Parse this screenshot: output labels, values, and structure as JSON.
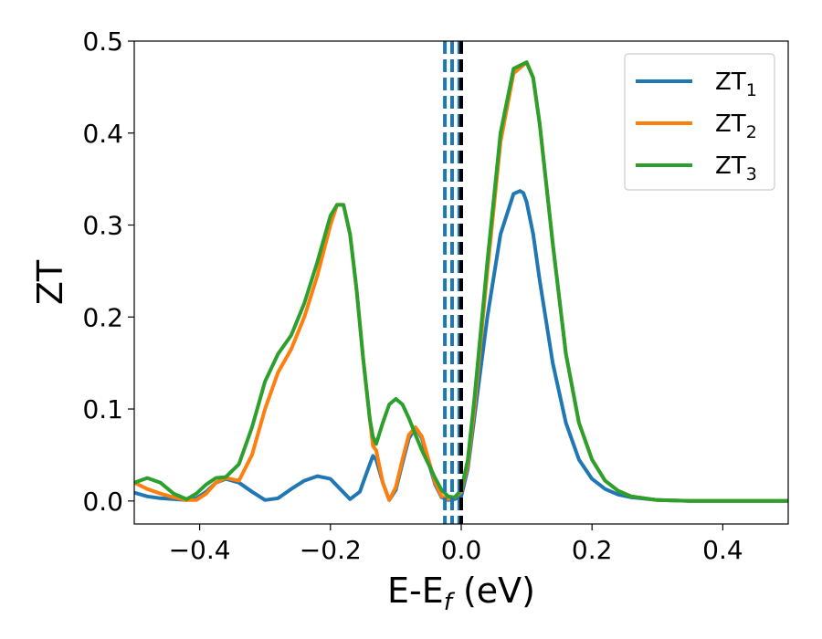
{
  "chart_data": {
    "type": "line",
    "xlabel_main": "E-E",
    "xlabel_sub": "f",
    "xlabel_unit": " (eV)",
    "ylabel": "ZT",
    "xlim": [
      -0.5,
      0.5
    ],
    "ylim": [
      -0.025,
      0.5
    ],
    "xticks": [
      -0.4,
      -0.2,
      0.0,
      0.2,
      0.4
    ],
    "xtick_labels": [
      "−0.4",
      "−0.2",
      "0.0",
      "0.2",
      "0.4"
    ],
    "yticks": [
      0.0,
      0.1,
      0.2,
      0.3,
      0.4,
      0.5
    ],
    "ytick_labels": [
      "0.0",
      "0.1",
      "0.2",
      "0.3",
      "0.4",
      "0.5"
    ],
    "legend_position": "top-right",
    "grid": false,
    "vlines": [
      {
        "x": -0.025,
        "style": "dashed",
        "color": "#1f77b4"
      },
      {
        "x": -0.014,
        "style": "dashed",
        "color": "#1f77b4"
      },
      {
        "x": -0.003,
        "style": "dashed",
        "color": "#1f77b4"
      },
      {
        "x": 0.0,
        "style": "dashed",
        "color": "#000000"
      }
    ],
    "series": [
      {
        "name": "ZT",
        "sub": "1",
        "color": "#1f77b4",
        "x": [
          -0.5,
          -0.48,
          -0.46,
          -0.44,
          -0.42,
          -0.405,
          -0.39,
          -0.375,
          -0.36,
          -0.34,
          -0.32,
          -0.3,
          -0.28,
          -0.26,
          -0.24,
          -0.22,
          -0.2,
          -0.185,
          -0.17,
          -0.155,
          -0.145,
          -0.135,
          -0.13,
          -0.12,
          -0.11,
          -0.1,
          -0.09,
          -0.08,
          -0.07,
          -0.06,
          -0.05,
          -0.04,
          -0.03,
          -0.02,
          -0.01,
          0.0,
          0.01,
          0.02,
          0.04,
          0.06,
          0.08,
          0.09,
          0.095,
          0.1,
          0.11,
          0.12,
          0.14,
          0.16,
          0.18,
          0.2,
          0.22,
          0.24,
          0.26,
          0.3,
          0.35,
          0.4,
          0.45,
          0.5
        ],
        "y": [
          0.009,
          0.005,
          0.003,
          0.002,
          0.001,
          0.003,
          0.01,
          0.02,
          0.024,
          0.02,
          0.01,
          0.001,
          0.003,
          0.013,
          0.022,
          0.027,
          0.024,
          0.013,
          0.002,
          0.01,
          0.03,
          0.049,
          0.045,
          0.02,
          0.001,
          0.012,
          0.041,
          0.068,
          0.08,
          0.068,
          0.042,
          0.018,
          0.004,
          0.001,
          0.002,
          0.005,
          0.035,
          0.09,
          0.2,
          0.29,
          0.334,
          0.337,
          0.335,
          0.325,
          0.29,
          0.24,
          0.15,
          0.085,
          0.045,
          0.024,
          0.013,
          0.007,
          0.004,
          0.001,
          0.0,
          0.0,
          0.0,
          0.0
        ]
      },
      {
        "name": "ZT",
        "sub": "2",
        "color": "#ff7f0e",
        "x": [
          -0.5,
          -0.48,
          -0.46,
          -0.44,
          -0.42,
          -0.405,
          -0.39,
          -0.375,
          -0.36,
          -0.34,
          -0.32,
          -0.3,
          -0.28,
          -0.26,
          -0.24,
          -0.22,
          -0.2,
          -0.19,
          -0.18,
          -0.17,
          -0.16,
          -0.15,
          -0.14,
          -0.135,
          -0.13,
          -0.12,
          -0.11,
          -0.1,
          -0.09,
          -0.08,
          -0.07,
          -0.06,
          -0.05,
          -0.04,
          -0.03,
          -0.02,
          -0.01,
          0.0,
          0.01,
          0.02,
          0.04,
          0.06,
          0.08,
          0.1,
          0.11,
          0.12,
          0.14,
          0.16,
          0.18,
          0.2,
          0.22,
          0.24,
          0.26,
          0.3,
          0.35,
          0.4,
          0.45,
          0.5
        ],
        "y": [
          0.02,
          0.013,
          0.008,
          0.004,
          0.001,
          0.001,
          0.008,
          0.02,
          0.025,
          0.022,
          0.05,
          0.1,
          0.14,
          0.165,
          0.2,
          0.245,
          0.3,
          0.322,
          0.322,
          0.29,
          0.23,
          0.155,
          0.09,
          0.06,
          0.055,
          0.02,
          0.001,
          0.015,
          0.045,
          0.072,
          0.08,
          0.07,
          0.045,
          0.02,
          0.005,
          0.002,
          0.004,
          0.01,
          0.04,
          0.1,
          0.25,
          0.39,
          0.465,
          0.477,
          0.46,
          0.41,
          0.28,
          0.16,
          0.085,
          0.045,
          0.022,
          0.011,
          0.005,
          0.001,
          0.0,
          0.0,
          0.0,
          0.0
        ]
      },
      {
        "name": "ZT",
        "sub": "3",
        "color": "#2ca02c",
        "x": [
          -0.5,
          -0.48,
          -0.46,
          -0.44,
          -0.42,
          -0.405,
          -0.39,
          -0.375,
          -0.36,
          -0.34,
          -0.32,
          -0.3,
          -0.28,
          -0.26,
          -0.24,
          -0.22,
          -0.2,
          -0.19,
          -0.18,
          -0.17,
          -0.16,
          -0.15,
          -0.14,
          -0.135,
          -0.13,
          -0.12,
          -0.11,
          -0.1,
          -0.09,
          -0.08,
          -0.07,
          -0.06,
          -0.05,
          -0.04,
          -0.03,
          -0.02,
          -0.01,
          0.0,
          0.01,
          0.02,
          0.04,
          0.06,
          0.08,
          0.1,
          0.11,
          0.12,
          0.14,
          0.16,
          0.18,
          0.2,
          0.22,
          0.24,
          0.26,
          0.3,
          0.35,
          0.4,
          0.45,
          0.5
        ],
        "y": [
          0.02,
          0.025,
          0.02,
          0.008,
          0.002,
          0.008,
          0.018,
          0.025,
          0.026,
          0.04,
          0.08,
          0.13,
          0.16,
          0.18,
          0.215,
          0.26,
          0.31,
          0.322,
          0.322,
          0.29,
          0.23,
          0.155,
          0.09,
          0.07,
          0.062,
          0.085,
          0.105,
          0.111,
          0.105,
          0.09,
          0.072,
          0.055,
          0.04,
          0.025,
          0.012,
          0.005,
          0.004,
          0.012,
          0.045,
          0.11,
          0.26,
          0.4,
          0.47,
          0.477,
          0.46,
          0.41,
          0.28,
          0.16,
          0.085,
          0.045,
          0.022,
          0.011,
          0.005,
          0.001,
          0.0,
          0.0,
          0.0,
          0.0
        ]
      }
    ]
  }
}
